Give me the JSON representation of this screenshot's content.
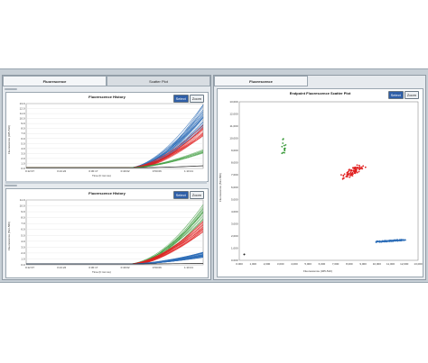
{
  "tabs": {
    "left": "Fluorescence",
    "middle": "Scatter Plot",
    "right": "Fluorescence"
  },
  "buttons": {
    "select": "Select",
    "zoom": "Zoom"
  },
  "colors": {
    "blue": "#2f6fb8",
    "red": "#e02020",
    "green": "#3a9a3a",
    "black": "#222222"
  },
  "chart_data": [
    {
      "type": "line",
      "title": "Fluorescence History",
      "xlabel": "Time (h:mm:ss)",
      "ylabel": "Fluorescence (465-510)",
      "x_ticks": [
        "0:12:37",
        "0:21:22",
        "0:30:17",
        "0:40:02",
        "0:50:06",
        "1:10:21"
      ],
      "y_ticks": [
        "0.0",
        "1.0",
        "2.0",
        "3.0",
        "4.0",
        "5.0",
        "6.0",
        "7.0",
        "8.0",
        "9.0",
        "10.0",
        "11.0",
        "12.0",
        "13.0"
      ],
      "ylim": [
        0,
        13
      ],
      "series": [
        {
          "color": "blue",
          "end_range": [
            8.0,
            13.0
          ],
          "count": 40
        },
        {
          "color": "red",
          "end_range": [
            6.5,
            9.0
          ],
          "count": 20
        },
        {
          "color": "green",
          "end_range": [
            3.0,
            4.0
          ],
          "count": 8
        },
        {
          "color": "black",
          "end_range": [
            0.5,
            0.6
          ],
          "count": 3
        }
      ]
    },
    {
      "type": "line",
      "title": "Fluorescence History",
      "xlabel": "Time (h:mm:ss)",
      "ylabel": "Fluorescence (533-580)",
      "x_ticks": [
        "0:12:37",
        "0:21:22",
        "0:30:17",
        "0:40:02",
        "0:50:06",
        "1:10:21"
      ],
      "y_ticks": [
        "0.0",
        "1.0",
        "2.0",
        "3.0",
        "4.0",
        "5.0",
        "6.0",
        "7.0",
        "8.0",
        "9.0",
        "10.0",
        "11.0"
      ],
      "ylim": [
        0,
        11
      ],
      "series": [
        {
          "color": "green",
          "end_range": [
            7.5,
            10.5
          ],
          "count": 20
        },
        {
          "color": "red",
          "end_range": [
            5.5,
            7.5
          ],
          "count": 25
        },
        {
          "color": "blue",
          "end_range": [
            1.2,
            2.2
          ],
          "count": 40
        },
        {
          "color": "black",
          "end_range": [
            0.2,
            0.3
          ],
          "count": 3
        }
      ]
    },
    {
      "type": "scatter",
      "title": "Endpoint Fluorescence Scatter Plot",
      "xlabel": "Fluorescence (465-510)",
      "ylabel": "Fluorescence (533-580)",
      "x_ticks": [
        "0.000",
        "1,000",
        "2,000",
        "3,000",
        "4,000",
        "5,000",
        "6,000",
        "7,000",
        "8,000",
        "9,000",
        "10,000",
        "11,000",
        "12,000",
        "13,000"
      ],
      "y_ticks": [
        "0.000",
        "1,000",
        "2,000",
        "3,000",
        "4,000",
        "5,000",
        "6,000",
        "7,000",
        "8,000",
        "9,000",
        "10,000",
        "11,000",
        "12,000",
        "13,000"
      ],
      "xlim": [
        0,
        13000
      ],
      "ylim": [
        0,
        13000
      ],
      "clusters": [
        {
          "color": "green",
          "center": [
            3300,
            9300
          ],
          "spread": [
            300,
            900
          ],
          "count": 14
        },
        {
          "color": "red",
          "center": [
            8300,
            7300
          ],
          "spread": [
            1100,
            900
          ],
          "count": 90,
          "correlated": true
        },
        {
          "color": "blue",
          "center": [
            11000,
            1600
          ],
          "spread": [
            1400,
            150
          ],
          "count": 140,
          "correlated": true
        },
        {
          "color": "black",
          "center": [
            400,
            500
          ],
          "spread": [
            150,
            100
          ],
          "count": 2
        }
      ]
    }
  ]
}
